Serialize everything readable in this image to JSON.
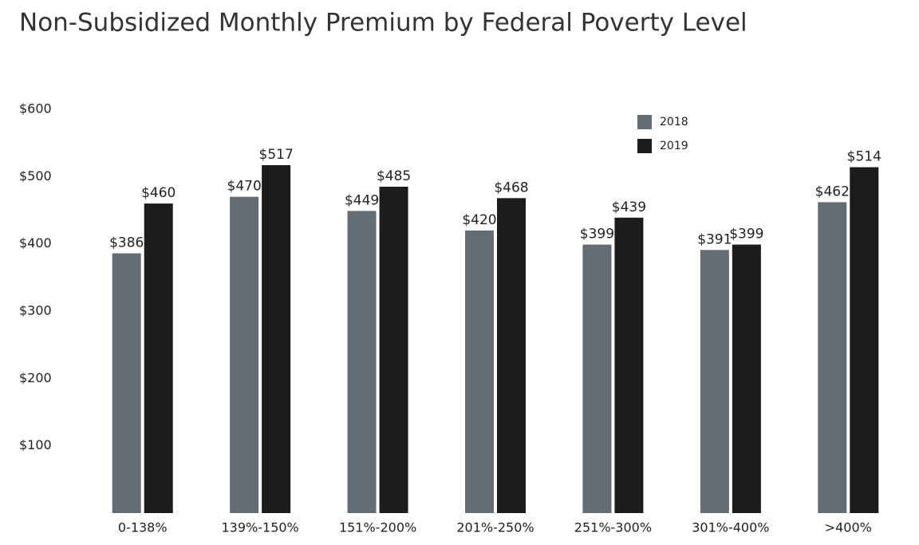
{
  "chart_data": {
    "type": "grouped_bar",
    "title": "Non-Subsidized Monthly Premium by Federal Poverty Level",
    "categories": [
      "0-138%",
      "139%-150%",
      "151%-200%",
      "201%-250%",
      "251%-300%",
      "301%-400%",
      ">400%"
    ],
    "series": [
      {
        "name": "2018",
        "color": "#646d73",
        "values": [
          386,
          470,
          449,
          420,
          399,
          391,
          462
        ],
        "value_labels": [
          "$386",
          "$470",
          "$449",
          "$420",
          "$399",
          "$391",
          "$462"
        ]
      },
      {
        "name": "2019",
        "color": "#1c1c1c",
        "values": [
          460,
          517,
          485,
          468,
          439,
          399,
          514
        ],
        "value_labels": [
          "$460",
          "$517",
          "$485",
          "$468",
          "$439",
          "$399",
          "$514"
        ]
      }
    ],
    "ylim": [
      0,
      600
    ],
    "yticks": [
      {
        "value": 100,
        "label": "$100"
      },
      {
        "value": 200,
        "label": "$200"
      },
      {
        "value": 300,
        "label": "$300"
      },
      {
        "value": 400,
        "label": "$400"
      },
      {
        "value": 500,
        "label": "$500"
      },
      {
        "value": 600,
        "label": "$600"
      }
    ],
    "grid": false,
    "legend": "top-right"
  }
}
